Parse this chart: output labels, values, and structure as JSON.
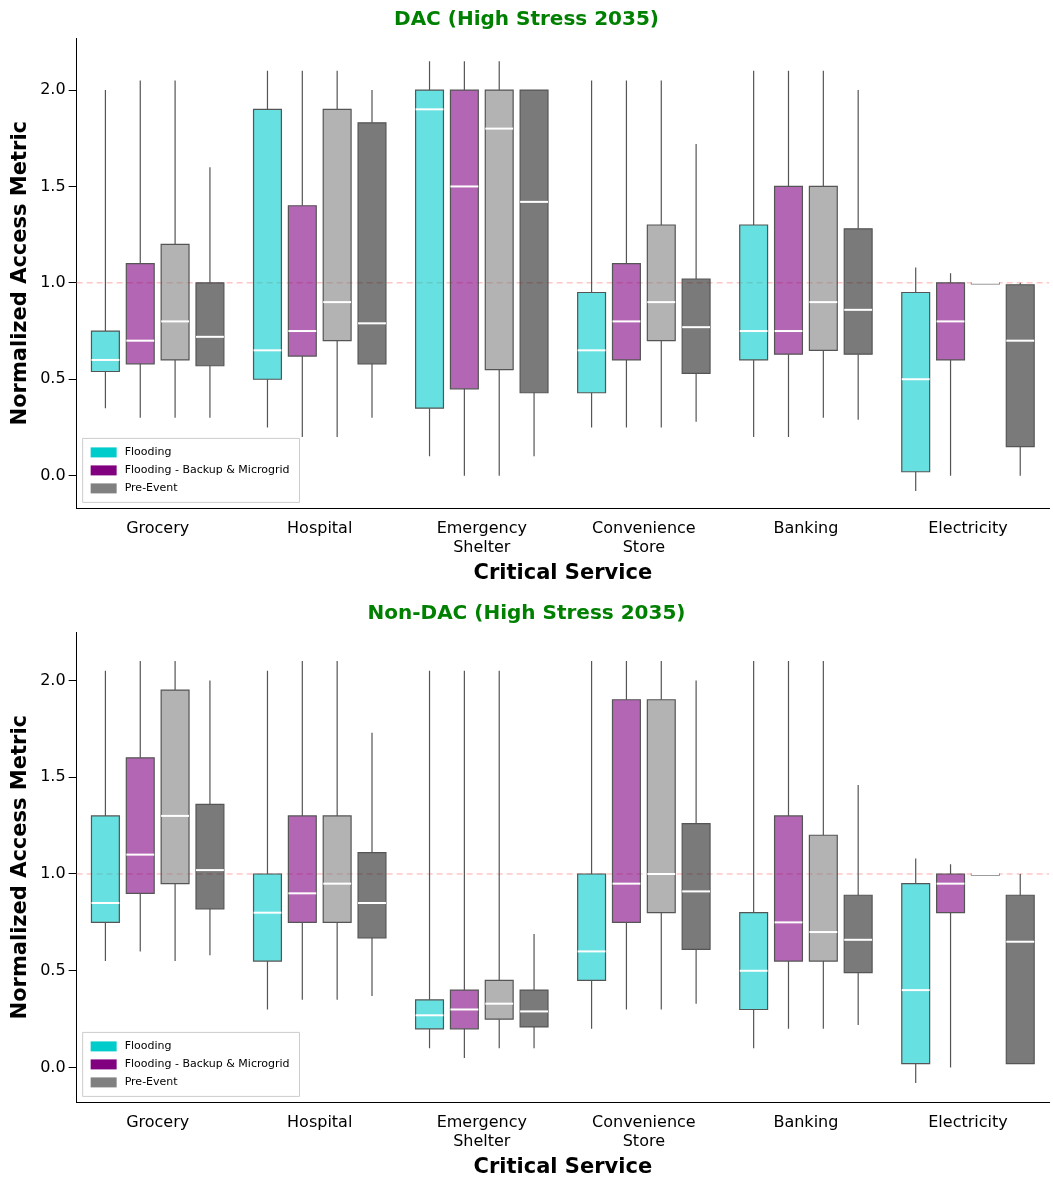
{
  "chart_data": [
    {
      "type": "box",
      "title": "DAC (High Stress 2035)",
      "xlabel": "Critical Service",
      "ylabel": "Normalized Access Metric",
      "categories": [
        "Grocery",
        "Hospital",
        "Emergency Shelter",
        "Convenience Store",
        "Banking",
        "Electricity"
      ],
      "ylim": [
        -0.17,
        2.27
      ],
      "yticks": [
        {
          "value": 0,
          "label": "0.0"
        },
        {
          "value": 0.5,
          "label": "0.5"
        },
        {
          "value": 1,
          "label": "1.0"
        },
        {
          "value": 1.5,
          "label": "1.5"
        },
        {
          "value": 2,
          "label": "2.0"
        }
      ],
      "legend": "bottom left",
      "grid": false,
      "ref_lines": [
        {
          "axis": "y",
          "value": 1,
          "color": "#ffaaaa",
          "line_style": "dashed"
        }
      ],
      "series": [
        {
          "name": "Flooding",
          "color": "#00cccc",
          "boxes": [
            {
              "low": 0.35,
              "q1": 0.54,
              "median": 0.6,
              "q3": 0.75,
              "high": 2.0
            },
            {
              "low": 0.25,
              "q1": 0.5,
              "median": 0.65,
              "q3": 1.9,
              "high": 2.1
            },
            {
              "low": 0.1,
              "q1": 0.35,
              "median": 1.9,
              "q3": 2.0,
              "high": 2.15
            },
            {
              "low": 0.25,
              "q1": 0.43,
              "median": 0.65,
              "q3": 0.95,
              "high": 2.05
            },
            {
              "low": 0.2,
              "q1": 0.6,
              "median": 0.75,
              "q3": 1.3,
              "high": 2.1
            },
            {
              "low": -0.08,
              "q1": 0.02,
              "median": 0.5,
              "q3": 0.95,
              "high": 1.08
            }
          ]
        },
        {
          "name": "Flooding - Backup & Microgrid",
          "color": "#800080",
          "boxes": [
            {
              "low": 0.3,
              "q1": 0.58,
              "median": 0.7,
              "q3": 1.1,
              "high": 2.05
            },
            {
              "low": 0.2,
              "q1": 0.62,
              "median": 0.75,
              "q3": 1.4,
              "high": 2.1
            },
            {
              "low": 0.0,
              "q1": 0.45,
              "median": 1.5,
              "q3": 2.0,
              "high": 2.15
            },
            {
              "low": 0.25,
              "q1": 0.6,
              "median": 0.8,
              "q3": 1.1,
              "high": 2.05
            },
            {
              "low": 0.2,
              "q1": 0.63,
              "median": 0.75,
              "q3": 1.5,
              "high": 2.1
            },
            {
              "low": 0.0,
              "q1": 0.6,
              "median": 0.8,
              "q3": 1.0,
              "high": 1.05
            }
          ]
        },
        {
          "name": "Pre-Event",
          "color": "#808080",
          "boxes": [
            {
              "low": 0.3,
              "q1": 0.6,
              "median": 0.8,
              "q3": 1.2,
              "high": 2.05
            },
            {
              "low": 0.2,
              "q1": 0.7,
              "median": 0.9,
              "q3": 1.9,
              "high": 2.1
            },
            {
              "low": 0.0,
              "q1": 0.55,
              "median": 1.8,
              "q3": 2.0,
              "high": 2.15
            },
            {
              "low": 0.25,
              "q1": 0.7,
              "median": 0.9,
              "q3": 1.3,
              "high": 2.05
            },
            {
              "low": 0.3,
              "q1": 0.65,
              "median": 0.9,
              "q3": 1.5,
              "high": 2.1
            },
            {
              "low": 1.0,
              "q1": 1.0,
              "median": 1.0,
              "q3": 1.0,
              "high": 1.0
            }
          ]
        },
        {
          "color": "#222222",
          "boxes": [
            {
              "low": 0.3,
              "q1": 0.57,
              "median": 0.72,
              "q3": 1.0,
              "high": 1.6
            },
            {
              "low": 0.3,
              "q1": 0.58,
              "median": 0.79,
              "q3": 1.83,
              "high": 2.0
            },
            {
              "low": 0.1,
              "q1": 0.43,
              "median": 1.42,
              "q3": 2.0,
              "high": 2.0
            },
            {
              "low": 0.28,
              "q1": 0.53,
              "median": 0.77,
              "q3": 1.02,
              "high": 1.72
            },
            {
              "low": 0.29,
              "q1": 0.63,
              "median": 0.86,
              "q3": 1.28,
              "high": 2.0
            },
            {
              "low": 0.0,
              "q1": 0.15,
              "median": 0.7,
              "q3": 0.99,
              "high": 1.0
            }
          ]
        }
      ]
    },
    {
      "type": "box",
      "title": "Non-DAC (High Stress 2035)",
      "xlabel": "Critical Service",
      "ylabel": "Normalized Access Metric",
      "categories": [
        "Grocery",
        "Hospital",
        "Emergency Shelter",
        "Convenience Store",
        "Banking",
        "Electricity"
      ],
      "ylim": [
        -0.18,
        2.25
      ],
      "yticks": [
        {
          "value": 0,
          "label": "0.0"
        },
        {
          "value": 0.5,
          "label": "0.5"
        },
        {
          "value": 1,
          "label": "1.0"
        },
        {
          "value": 1.5,
          "label": "1.5"
        },
        {
          "value": 2,
          "label": "2.0"
        }
      ],
      "legend": "bottom left",
      "grid": false,
      "ref_lines": [
        {
          "axis": "y",
          "value": 1,
          "color": "#ffaaaa",
          "line_style": "dashed"
        }
      ],
      "series": [
        {
          "name": "Flooding",
          "color": "#00cccc",
          "boxes": [
            {
              "low": 0.55,
              "q1": 0.75,
              "median": 0.85,
              "q3": 1.3,
              "high": 2.05
            },
            {
              "low": 0.3,
              "q1": 0.55,
              "median": 0.8,
              "q3": 1.0,
              "high": 2.05
            },
            {
              "low": 0.1,
              "q1": 0.2,
              "median": 0.27,
              "q3": 0.35,
              "high": 2.05
            },
            {
              "low": 0.2,
              "q1": 0.45,
              "median": 0.6,
              "q3": 1.0,
              "high": 2.1
            },
            {
              "low": 0.1,
              "q1": 0.3,
              "median": 0.5,
              "q3": 0.8,
              "high": 2.1
            },
            {
              "low": -0.08,
              "q1": 0.02,
              "median": 0.4,
              "q3": 0.95,
              "high": 1.08
            }
          ]
        },
        {
          "name": "Flooding - Backup & Microgrid",
          "color": "#800080",
          "boxes": [
            {
              "low": 0.6,
              "q1": 0.9,
              "median": 1.1,
              "q3": 1.6,
              "high": 2.1
            },
            {
              "low": 0.35,
              "q1": 0.75,
              "median": 0.9,
              "q3": 1.3,
              "high": 2.1
            },
            {
              "low": 0.05,
              "q1": 0.2,
              "median": 0.3,
              "q3": 0.4,
              "high": 2.05
            },
            {
              "low": 0.3,
              "q1": 0.75,
              "median": 0.95,
              "q3": 1.9,
              "high": 2.1
            },
            {
              "low": 0.2,
              "q1": 0.55,
              "median": 0.75,
              "q3": 1.3,
              "high": 2.1
            },
            {
              "low": 0.0,
              "q1": 0.8,
              "median": 0.95,
              "q3": 1.0,
              "high": 1.05
            }
          ]
        },
        {
          "name": "Pre-Event",
          "color": "#808080",
          "boxes": [
            {
              "low": 0.55,
              "q1": 0.95,
              "median": 1.3,
              "q3": 1.95,
              "high": 2.1
            },
            {
              "low": 0.35,
              "q1": 0.75,
              "median": 0.95,
              "q3": 1.3,
              "high": 2.1
            },
            {
              "low": 0.1,
              "q1": 0.25,
              "median": 0.33,
              "q3": 0.45,
              "high": 2.05
            },
            {
              "low": 0.3,
              "q1": 0.8,
              "median": 1.0,
              "q3": 1.9,
              "high": 2.1
            },
            {
              "low": 0.2,
              "q1": 0.55,
              "median": 0.7,
              "q3": 1.2,
              "high": 2.1
            },
            {
              "low": 1.0,
              "q1": 1.0,
              "median": 1.0,
              "q3": 1.0,
              "high": 1.0
            }
          ]
        },
        {
          "color": "#222222",
          "boxes": [
            {
              "low": 0.58,
              "q1": 0.82,
              "median": 1.02,
              "q3": 1.36,
              "high": 2.0
            },
            {
              "low": 0.37,
              "q1": 0.67,
              "median": 0.85,
              "q3": 1.11,
              "high": 1.73
            },
            {
              "low": 0.1,
              "q1": 0.21,
              "median": 0.29,
              "q3": 0.4,
              "high": 0.69
            },
            {
              "low": 0.33,
              "q1": 0.61,
              "median": 0.91,
              "q3": 1.26,
              "high": 2.0
            },
            {
              "low": 0.22,
              "q1": 0.49,
              "median": 0.66,
              "q3": 0.89,
              "high": 1.46
            },
            {
              "low": 0.02,
              "q1": 0.02,
              "median": 0.65,
              "q3": 0.89,
              "high": 1.0
            }
          ]
        }
      ]
    }
  ]
}
